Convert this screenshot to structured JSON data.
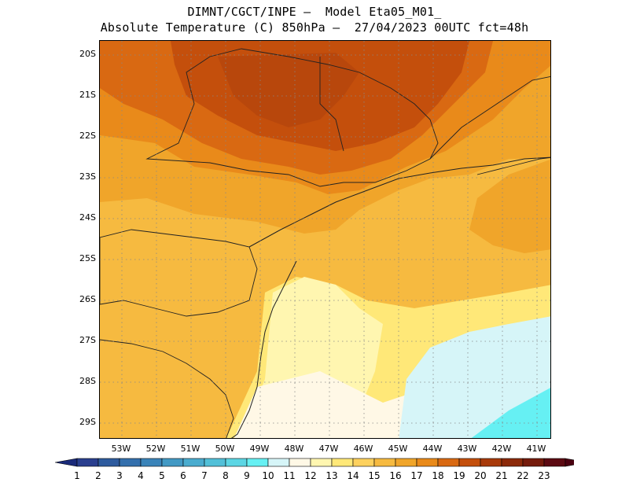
{
  "title": {
    "line1": "DIMNT/CGCT/INPE –  Model Eta05_M01_",
    "line2": "Absolute Temperature (C) 850hPa –  27/04/2023 00UTC fct=48h"
  },
  "map": {
    "lat_labels": [
      "20S",
      "21S",
      "22S",
      "23S",
      "24S",
      "25S",
      "26S",
      "27S",
      "28S",
      "29S"
    ],
    "lon_labels": [
      "53W",
      "52W",
      "51W",
      "50W",
      "49W",
      "48W",
      "47W",
      "46W",
      "45W",
      "44W",
      "43W",
      "42W",
      "41W"
    ],
    "gridlines": "dotted",
    "boundaries": "state and coastline outlines"
  },
  "colorbar": {
    "labels": [
      "1",
      "2",
      "3",
      "4",
      "5",
      "6",
      "7",
      "8",
      "9",
      "10",
      "11",
      "12",
      "13",
      "14",
      "15",
      "16",
      "17",
      "18",
      "19",
      "20",
      "21",
      "22",
      "23"
    ],
    "colors": [
      "#2a3f8f",
      "#2e5b9e",
      "#3470ad",
      "#3a84b9",
      "#4299c4",
      "#4aaccf",
      "#52c0d8",
      "#5cd6e4",
      "#66f0f3",
      "#d6f5f8",
      "#fff8e6",
      "#fff6b0",
      "#ffe878",
      "#fdd15e",
      "#f6ba40",
      "#f0a52a",
      "#e98a1a",
      "#d96912",
      "#c44f0c",
      "#a83a0a",
      "#8c2a0a",
      "#751b0c",
      "#5c0a12"
    ],
    "under_color": "#1a2a7a",
    "over_color": "#4a0010"
  }
}
